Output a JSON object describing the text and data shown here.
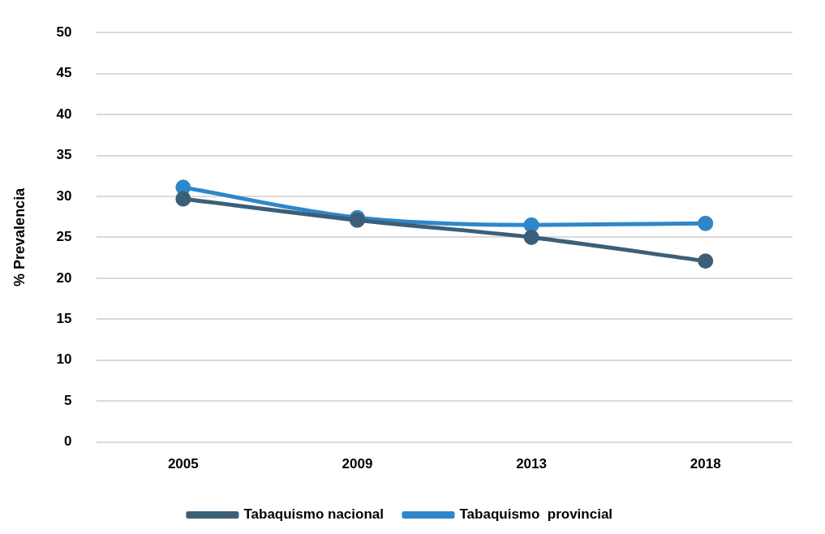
{
  "chart_data": {
    "type": "line",
    "ylabel": "% Prevalencia",
    "categories": [
      "2005",
      "2009",
      "2013",
      "2018"
    ],
    "series": [
      {
        "name": "Tabaquismo nacional",
        "color": "#3b5f78",
        "values": [
          29.7,
          27.1,
          25.0,
          22.1
        ]
      },
      {
        "name": "Tabaquismo  provincial",
        "color": "#2f87c9",
        "values": [
          31.1,
          27.4,
          26.5,
          26.7
        ]
      }
    ],
    "ylim": [
      0,
      50
    ],
    "yticks": [
      0,
      5,
      10,
      15,
      20,
      25,
      30,
      35,
      40,
      45,
      50
    ],
    "grid": "y",
    "legend": "bottom",
    "marker": "circle",
    "line_style": "solid"
  }
}
